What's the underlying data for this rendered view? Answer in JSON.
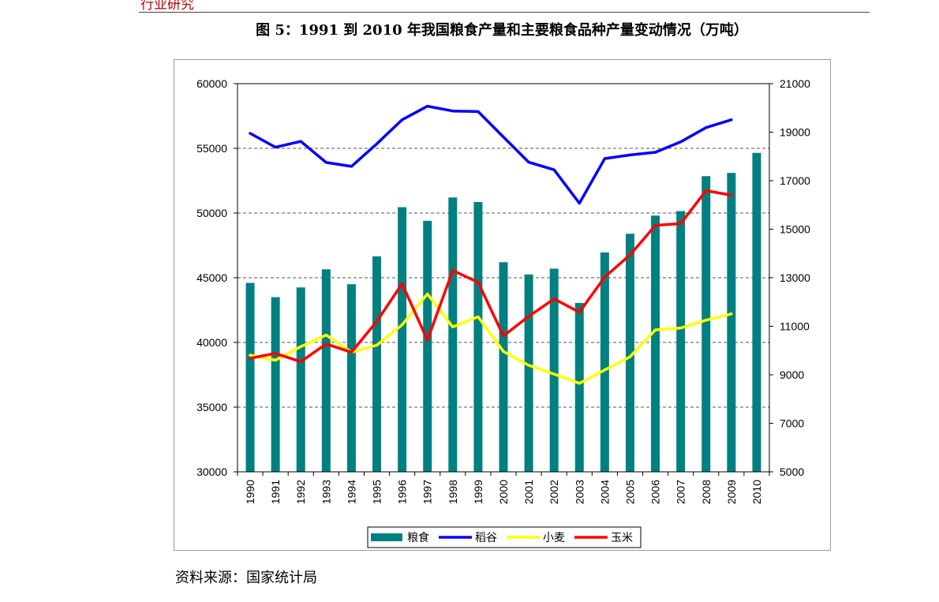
{
  "header": {
    "section_label": "行业研究"
  },
  "figure": {
    "title": "图 5：1991 到 2010 年我国粮食产量和主要粮食品种产量变动情况（万吨）",
    "source": "资料来源：国家统计局"
  },
  "colors": {
    "grain": "#008080",
    "rice": "#0000ff",
    "wheat": "#ffff00",
    "corn": "#ff0000",
    "header_red": "#c00000"
  },
  "chart_data": {
    "type": "bar",
    "categories": [
      "1990",
      "1991",
      "1992",
      "1993",
      "1994",
      "1995",
      "1996",
      "1997",
      "1998",
      "1999",
      "2000",
      "2001",
      "2002",
      "2003",
      "2004",
      "2005",
      "2006",
      "2007",
      "2008",
      "2009",
      "2010"
    ],
    "y_left": {
      "ylim": [
        30000,
        60000
      ],
      "ticks": [
        30000,
        35000,
        40000,
        45000,
        50000,
        55000,
        60000
      ]
    },
    "y_right": {
      "ylim": [
        5000,
        21000
      ],
      "ticks": [
        5000,
        7000,
        9000,
        11000,
        13000,
        15000,
        17000,
        19000,
        21000
      ]
    },
    "grid": "dashed-horizontal",
    "legend_position": "bottom",
    "series": [
      {
        "name": "粮食",
        "type": "bar",
        "axis": "left",
        "values": [
          44600,
          43500,
          44250,
          45650,
          44500,
          46650,
          50450,
          49400,
          51200,
          50850,
          46200,
          45250,
          45700,
          43050,
          46950,
          48400,
          49800,
          50150,
          52850,
          53100,
          54650
        ]
      },
      {
        "name": "稻谷",
        "type": "line",
        "axis": "right",
        "values": [
          18950,
          18380,
          18620,
          17750,
          17590,
          18520,
          19510,
          20070,
          19870,
          19850,
          18800,
          17760,
          17450,
          16070,
          17910,
          18060,
          18170,
          18600,
          19190,
          19510,
          null
        ]
      },
      {
        "name": "小麦",
        "type": "line",
        "axis": "right",
        "values": [
          9810,
          9600,
          10160,
          10640,
          9930,
          10220,
          11060,
          12330,
          10970,
          11390,
          9960,
          9390,
          9030,
          8650,
          9200,
          9740,
          10850,
          10930,
          11250,
          11510,
          null
        ]
      },
      {
        "name": "玉米",
        "type": "line",
        "axis": "right",
        "values": [
          9680,
          9880,
          9540,
          10270,
          9930,
          11200,
          12750,
          10430,
          13300,
          12810,
          10600,
          11410,
          12130,
          11580,
          13030,
          13940,
          15160,
          15230,
          16590,
          16400,
          null
        ]
      }
    ]
  }
}
